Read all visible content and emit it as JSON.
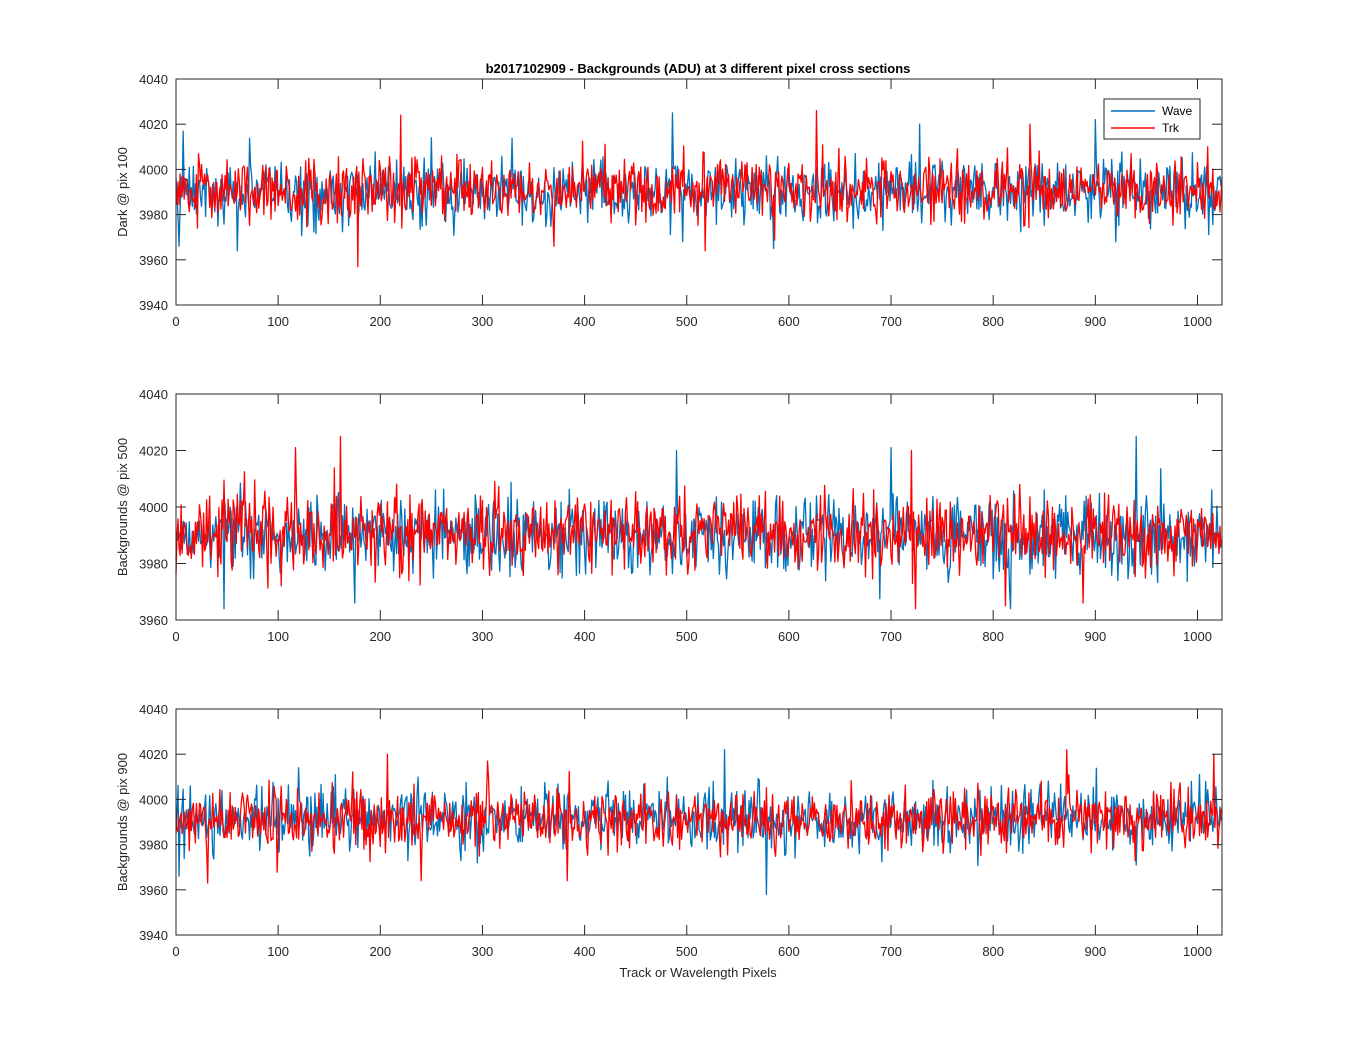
{
  "figure": {
    "title": "b2017102909 - Backgrounds (ADU) at 3 different pixel cross sections",
    "xlabel": "Track or Wavelength Pixels"
  },
  "chart_data": [
    {
      "type": "line",
      "ylabel": "Dark @ pix 100",
      "xlim": [
        0,
        1024
      ],
      "ylim": [
        3940,
        4040
      ],
      "xticks": [
        0,
        100,
        200,
        300,
        400,
        500,
        600,
        700,
        800,
        900,
        1000
      ],
      "yticks": [
        3940,
        3960,
        3980,
        4000,
        4020,
        4040
      ],
      "legend": {
        "entries": [
          "Wave",
          "Trk"
        ],
        "placement": "top-right"
      },
      "series": [
        {
          "name": "Wave",
          "color": "#0072BD",
          "mean": 3990,
          "spread": 7,
          "peaks": [
            [
              7,
              4017
            ],
            [
              486,
              4025
            ],
            [
              728,
              4020
            ],
            [
              900,
              4022
            ],
            [
              3,
              3966
            ],
            [
              60,
              3964
            ],
            [
              585,
              3965
            ],
            [
              920,
              3968
            ]
          ]
        },
        {
          "name": "Trk",
          "color": "#FF0000",
          "mean": 3991,
          "spread": 7,
          "peaks": [
            [
              220,
              4024
            ],
            [
              627,
              4026
            ],
            [
              178,
              3957
            ],
            [
              518,
              3964
            ],
            [
              370,
              3966
            ],
            [
              1010,
              4010
            ],
            [
              836,
              4020
            ]
          ]
        }
      ]
    },
    {
      "type": "line",
      "ylabel": "Backgrounds @ pix 500",
      "xlim": [
        0,
        1024
      ],
      "ylim": [
        3960,
        4040
      ],
      "xticks": [
        0,
        100,
        200,
        300,
        400,
        500,
        600,
        700,
        800,
        900,
        1000
      ],
      "yticks": [
        3960,
        3980,
        4000,
        4020,
        4040
      ],
      "series": [
        {
          "name": "Wave",
          "color": "#0072BD",
          "mean": 3990,
          "spread": 7,
          "peaks": [
            [
              940,
              4025
            ],
            [
              47,
              3964
            ],
            [
              817,
              3964
            ],
            [
              700,
              4021
            ],
            [
              490,
              4020
            ],
            [
              175,
              3966
            ]
          ]
        },
        {
          "name": "Trk",
          "color": "#FF0000",
          "mean": 3991,
          "spread": 7,
          "peaks": [
            [
              161,
              4025
            ],
            [
              117,
              4021
            ],
            [
              724,
              3964
            ],
            [
              812,
              3965
            ],
            [
              888,
              3966
            ],
            [
              720,
              4020
            ]
          ]
        }
      ]
    },
    {
      "type": "line",
      "ylabel": "Backgrounds @ pix 900",
      "xlim": [
        0,
        1024
      ],
      "ylim": [
        3940,
        4040
      ],
      "xticks": [
        0,
        100,
        200,
        300,
        400,
        500,
        600,
        700,
        800,
        900,
        1000
      ],
      "yticks": [
        3940,
        3960,
        3980,
        4000,
        4020,
        4040
      ],
      "series": [
        {
          "name": "Wave",
          "color": "#0072BD",
          "mean": 3991,
          "spread": 7,
          "peaks": [
            [
              537,
              4022
            ],
            [
              578,
              3958
            ],
            [
              3,
              3966
            ],
            [
              940,
              3971
            ],
            [
              120,
              4014
            ]
          ]
        },
        {
          "name": "Trk",
          "color": "#FF0000",
          "mean": 3991,
          "spread": 7,
          "peaks": [
            [
              207,
              4020
            ],
            [
              872,
              4022
            ],
            [
              1016,
              4020
            ],
            [
              31,
              3963
            ],
            [
              383,
              3964
            ],
            [
              240,
              3964
            ],
            [
              305,
              4017
            ]
          ]
        }
      ]
    }
  ]
}
